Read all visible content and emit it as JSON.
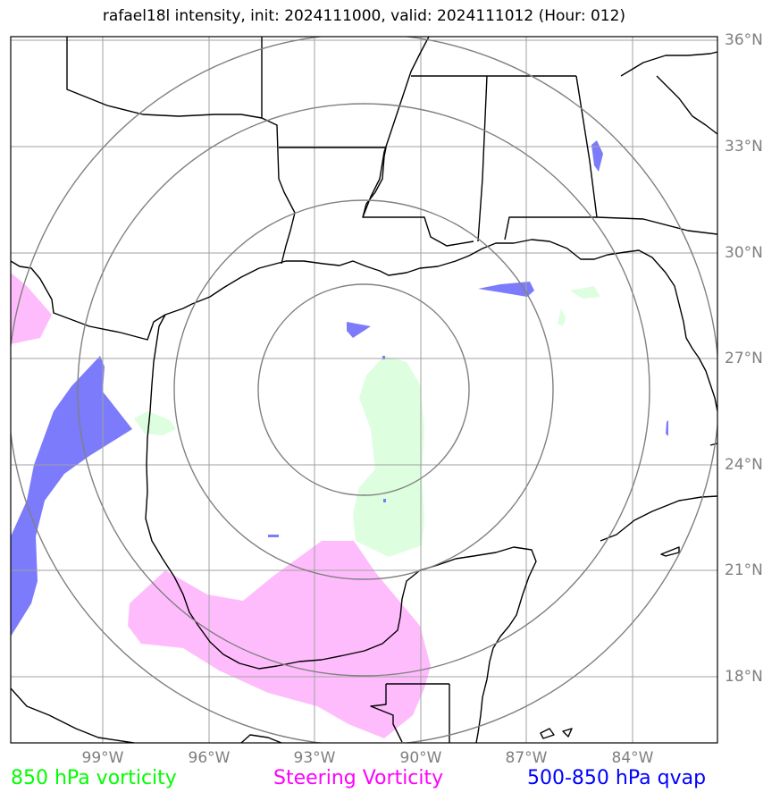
{
  "title": "rafael18l intensity, init: 2024111000, valid: 2024111012 (Hour: 012)",
  "map": {
    "latitudes": [
      "36°N",
      "33°N",
      "30°N",
      "27°N",
      "24°N",
      "21°N",
      "18°N"
    ],
    "longitudes": [
      "99°W",
      "96°W",
      "93°W",
      "90°W",
      "87°W",
      "84°W"
    ],
    "colors": {
      "vorticity_850": "#ddfedf",
      "steering_vorticity": "#ffbcfd",
      "qvap": "#7b7bfb",
      "range_rings": "#808080",
      "grid": "#a0a0a0",
      "coastline": "#000000"
    }
  },
  "legend": {
    "vorticity_850": {
      "label": "850 hPa vorticity",
      "color": "#00ff00"
    },
    "steering_vorticity": {
      "label": "Steering Vorticity",
      "color": "#ff00ff"
    },
    "qvap": {
      "label": "500-850 hPa qvap",
      "color": "#0000ff"
    }
  }
}
